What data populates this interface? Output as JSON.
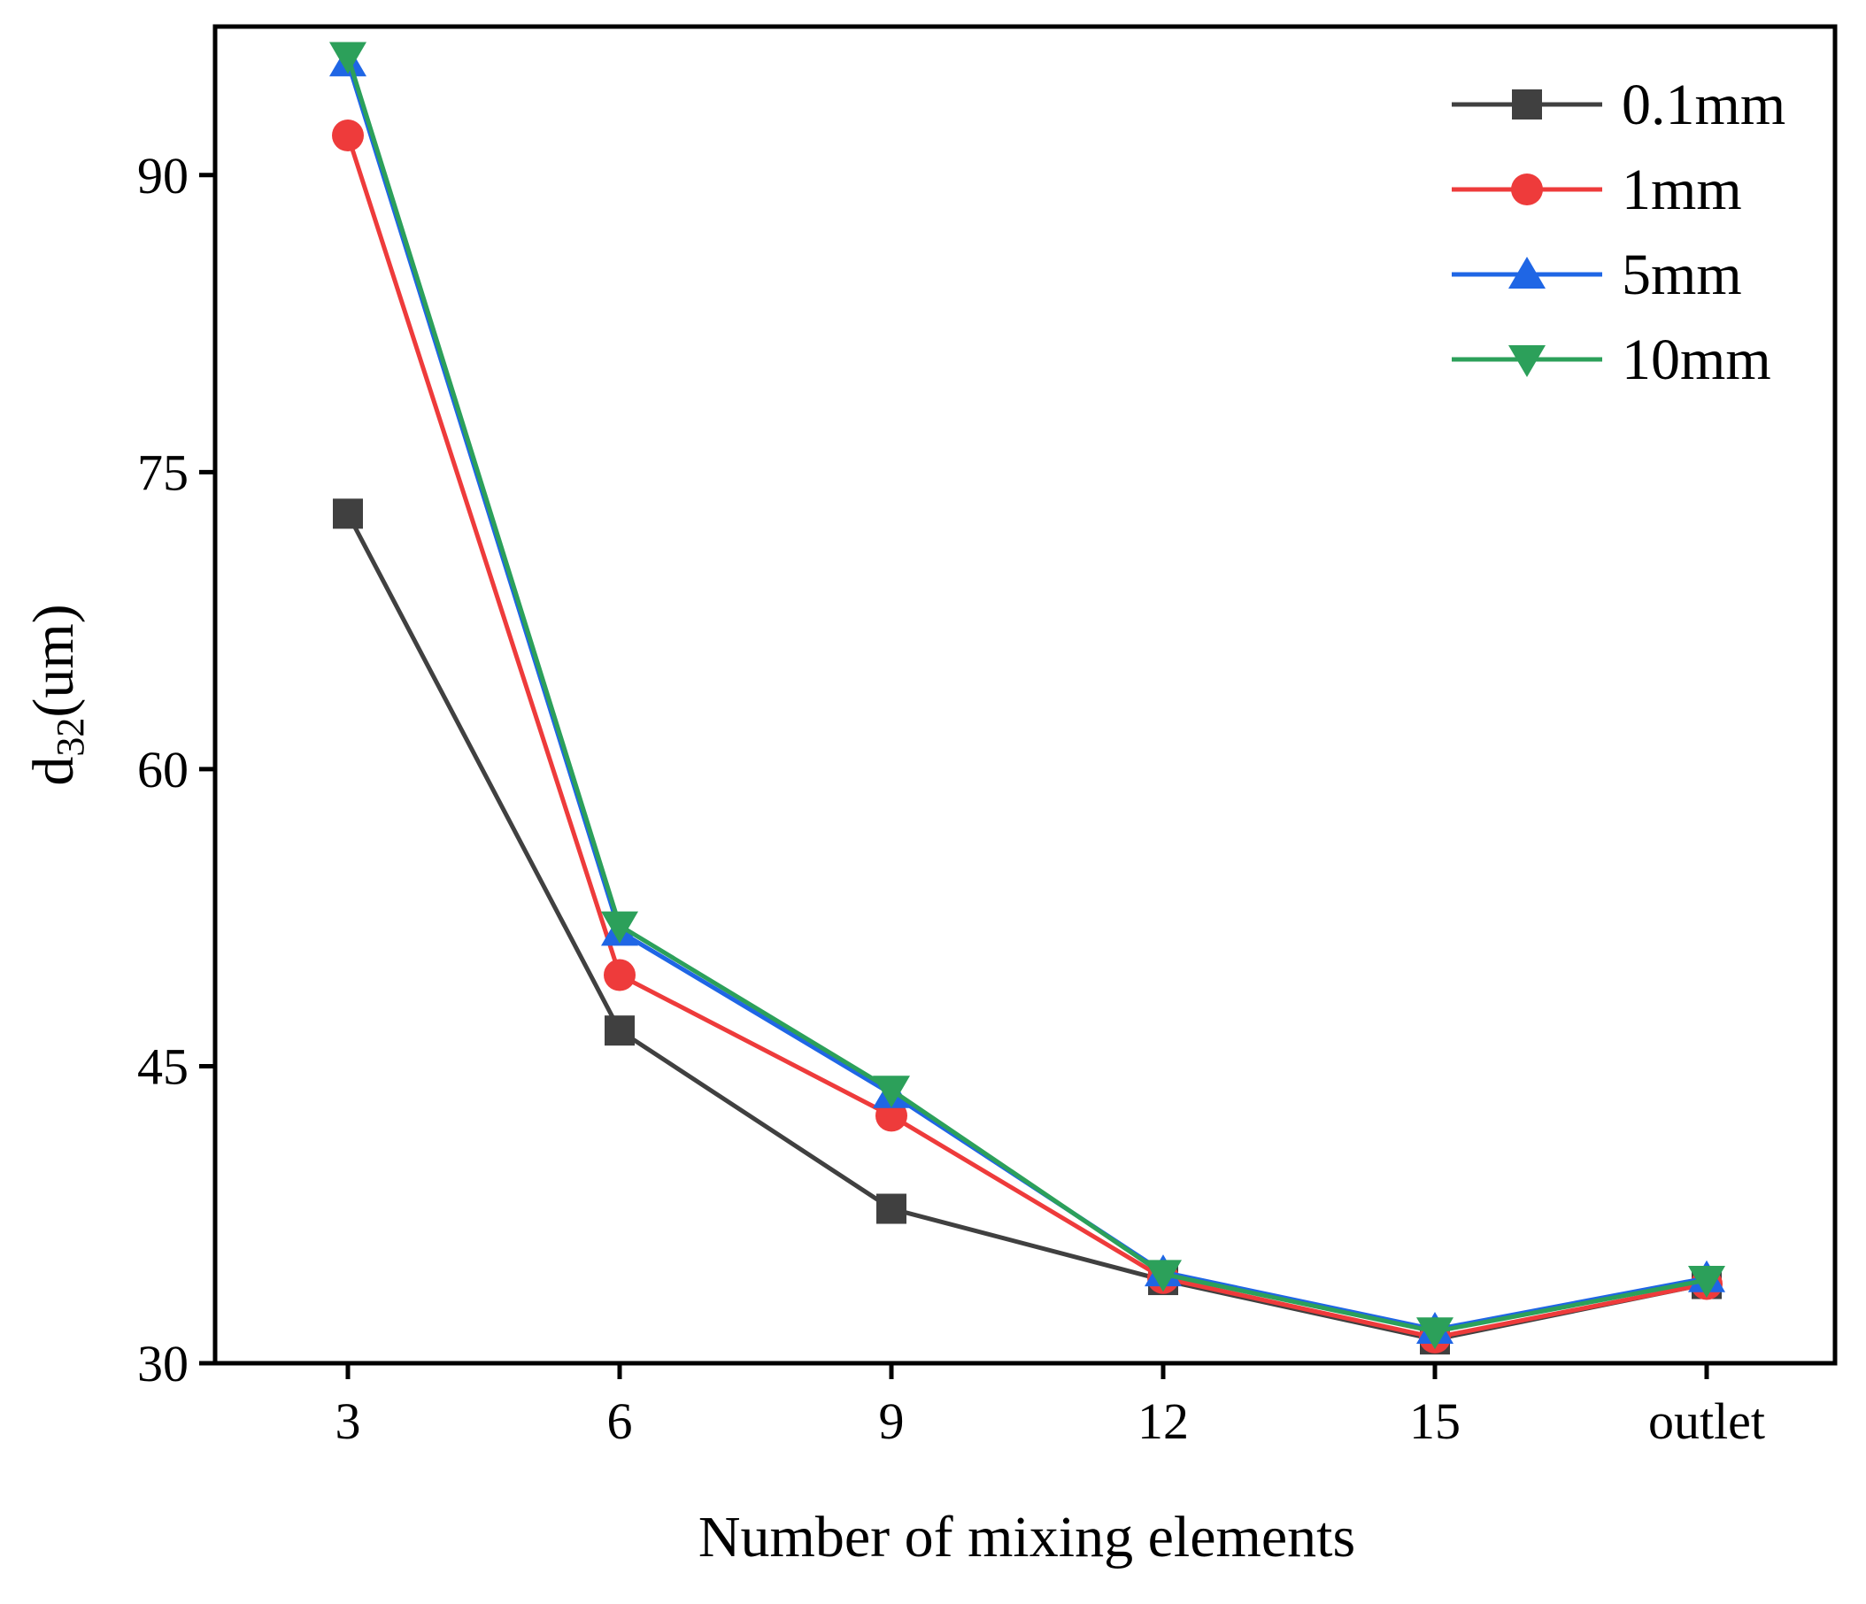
{
  "chart_data": {
    "type": "line",
    "title": "",
    "xlabel": "Number of mixing elements",
    "ylabel_main": "d",
    "ylabel_sub": "32",
    "ylabel_unit": "(um)",
    "categories": [
      "3",
      "6",
      "9",
      "12",
      "15",
      "outlet"
    ],
    "ylim": [
      30,
      97.5
    ],
    "yticks": [
      30,
      45,
      60,
      75,
      90
    ],
    "legend_position": "top-right",
    "series": [
      {
        "name": "0.1mm",
        "color": "#404040",
        "marker": "square",
        "values": [
          72.9,
          46.8,
          37.8,
          34.2,
          31.2,
          34.0
        ]
      },
      {
        "name": "1mm",
        "color": "#ee3b3b",
        "marker": "circle",
        "values": [
          92.0,
          49.6,
          42.5,
          34.3,
          31.3,
          34.0
        ]
      },
      {
        "name": "5mm",
        "color": "#1f66e5",
        "marker": "triangle-up",
        "values": [
          95.7,
          51.8,
          43.6,
          34.6,
          31.7,
          34.3
        ]
      },
      {
        "name": "10mm",
        "color": "#2ca05a",
        "marker": "triangle-down",
        "values": [
          96.0,
          52.1,
          43.8,
          34.5,
          31.6,
          34.2
        ]
      }
    ]
  }
}
